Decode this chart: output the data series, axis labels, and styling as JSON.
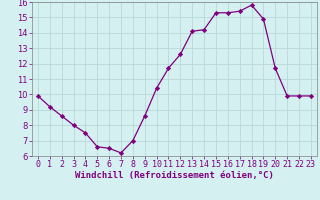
{
  "x": [
    0,
    1,
    2,
    3,
    4,
    5,
    6,
    7,
    8,
    9,
    10,
    11,
    12,
    13,
    14,
    15,
    16,
    17,
    18,
    19,
    20,
    21,
    22,
    23
  ],
  "y": [
    9.9,
    9.2,
    8.6,
    8.0,
    7.5,
    6.6,
    6.5,
    6.2,
    7.0,
    8.6,
    10.4,
    11.7,
    12.6,
    14.1,
    14.2,
    15.3,
    15.3,
    15.4,
    15.8,
    14.9,
    11.7,
    9.9,
    9.9,
    9.9
  ],
  "line_color": "#800080",
  "marker": "D",
  "marker_size": 2.2,
  "xlabel": "Windchill (Refroidissement éolien,°C)",
  "xlabel_fontsize": 6.5,
  "bg_color": "#d4f0f0",
  "grid_color": "#b8d8d8",
  "tick_label_fontsize": 6.0,
  "ylim": [
    6,
    16
  ],
  "yticks": [
    6,
    7,
    8,
    9,
    10,
    11,
    12,
    13,
    14,
    15,
    16
  ],
  "xlim": [
    -0.5,
    23.5
  ],
  "xticks": [
    0,
    1,
    2,
    3,
    4,
    5,
    6,
    7,
    8,
    9,
    10,
    11,
    12,
    13,
    14,
    15,
    16,
    17,
    18,
    19,
    20,
    21,
    22,
    23
  ],
  "spine_color": "#808080",
  "xlabel_color": "#800080",
  "tick_color": "#800080",
  "xlabel_bar_color": "#800080"
}
